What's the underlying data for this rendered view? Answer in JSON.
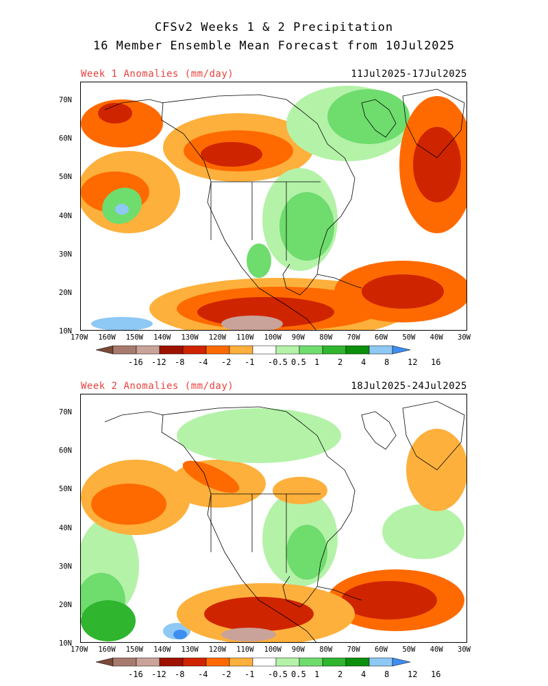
{
  "header": {
    "line1": "CFSv2 Weeks 1 & 2 Precipitation",
    "line2": "16 Member Ensemble Mean Forecast from 10Jul2025"
  },
  "panels": [
    {
      "label": "Week 1 Anomalies (mm/day)",
      "dates": "11Jul2025-17Jul2025"
    },
    {
      "label": "Week 2 Anomalies (mm/day)",
      "dates": "18Jul2025-24Jul2025"
    }
  ],
  "axes": {
    "lat_ticks": [
      "70N",
      "60N",
      "50N",
      "40N",
      "30N",
      "20N",
      "10N"
    ],
    "lon_ticks": [
      "170W",
      "160W",
      "150W",
      "140W",
      "130W",
      "120W",
      "110W",
      "100W",
      "90W",
      "80W",
      "70W",
      "60W",
      "50W",
      "40W",
      "30W"
    ]
  },
  "colorbar": {
    "labels": [
      "-16",
      "-12",
      "-8",
      "-4",
      "-2",
      "-1",
      "-0.5",
      "0.5",
      "1",
      "2",
      "4",
      "8",
      "12",
      "16"
    ],
    "colors": [
      "#7a4a3a",
      "#a87a6e",
      "#c9a399",
      "#9e1200",
      "#cf2400",
      "#ff6a00",
      "#fdb03c",
      "#ffffff",
      "#b4f2a8",
      "#6fdc6e",
      "#2fb52e",
      "#0c8f0c",
      "#8ec8f4",
      "#3d8ef0"
    ]
  },
  "map_colors": {
    "wet_light": "#b4f2a8",
    "wet_mid": "#6fdc6e",
    "wet_dark": "#2fb52e",
    "wet_vdark": "#0c8f0c",
    "blue_light": "#8ec8f4",
    "blue_dark": "#3d8ef0",
    "dry_light": "#fdb03c",
    "dry_mid": "#ff6a00",
    "dry_dark": "#cf2400",
    "dry_vdark": "#9e1200",
    "brown": "#c9a399"
  }
}
